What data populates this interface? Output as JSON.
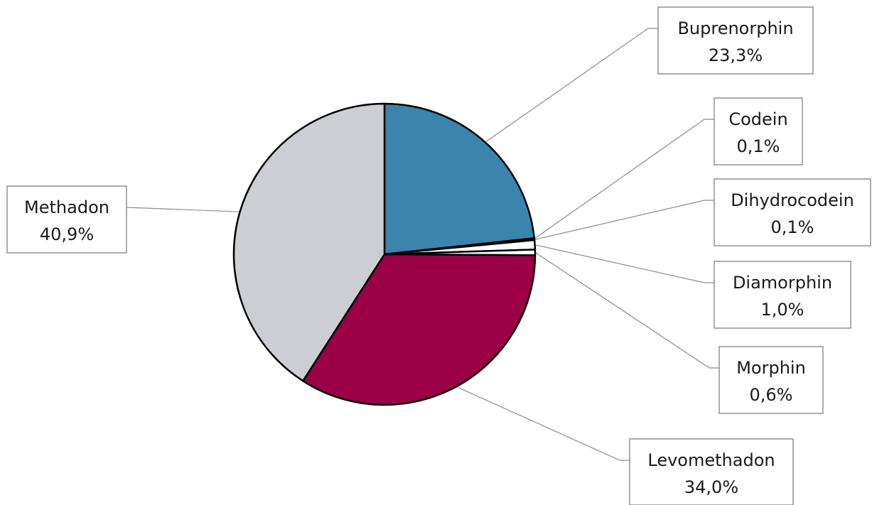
{
  "chart_data": {
    "type": "pie",
    "title": "",
    "start": "12 o'clock",
    "direction": "clockwise",
    "unit": "%",
    "slices": [
      {
        "label": "Buprenorphin",
        "value": 23.3,
        "value_label": "23,3%",
        "color": "#3b84ab"
      },
      {
        "label": "Codein",
        "value": 0.1,
        "value_label": "0,1%",
        "color": "#ffffff"
      },
      {
        "label": "Dihydrocodein",
        "value": 0.1,
        "value_label": "0,1%",
        "color": "#ffffff"
      },
      {
        "label": "Diamorphin",
        "value": 1.0,
        "value_label": "1,0%",
        "color": "#ffffff"
      },
      {
        "label": "Morphin",
        "value": 0.6,
        "value_label": "0,6%",
        "color": "#ffffff"
      },
      {
        "label": "Levomethadon",
        "value": 34.0,
        "value_label": "34,0%",
        "color": "#9b0047"
      },
      {
        "label": "Methadon",
        "value": 40.9,
        "value_label": "40,9%",
        "color": "#ccced3"
      }
    ]
  }
}
